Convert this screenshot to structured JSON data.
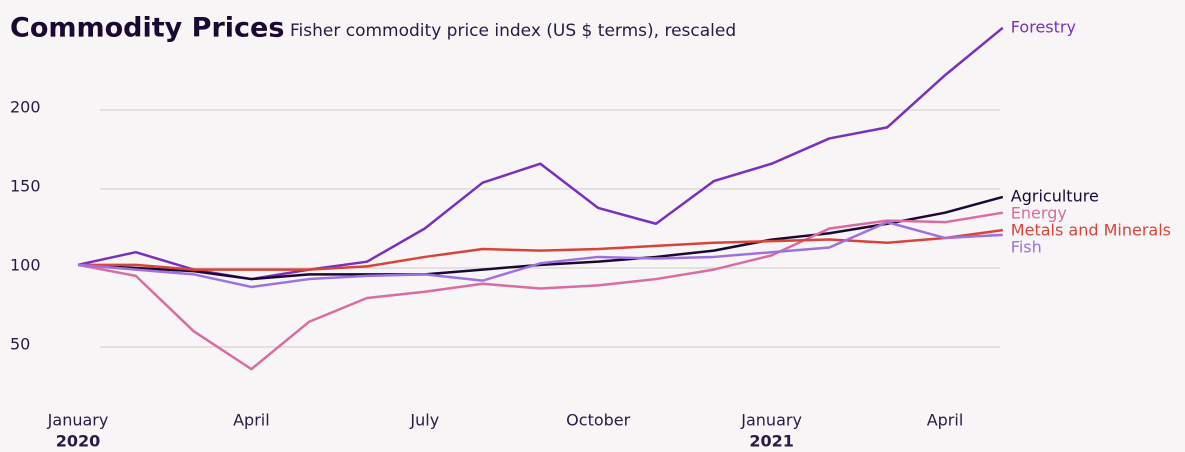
{
  "chart_data": {
    "type": "line",
    "title": "Commodity Prices",
    "subtitle": "Fisher commodity price index (US $ terms), rescaled",
    "categories": [
      "January",
      null,
      null,
      "April",
      null,
      null,
      "July",
      null,
      null,
      "October",
      null,
      null,
      "January",
      null,
      null,
      "April",
      null
    ],
    "years": [
      "2020",
      null,
      null,
      null,
      null,
      null,
      null,
      null,
      null,
      null,
      null,
      null,
      "2021",
      null,
      null,
      null,
      null
    ],
    "ylim": [
      30,
      260
    ],
    "yticks": [
      50,
      100,
      150,
      200
    ],
    "grid": true,
    "series": [
      {
        "name": "Forestry",
        "color": "#7b2fbf",
        "values": [
          102,
          110,
          99,
          93,
          99,
          104,
          125,
          154,
          166,
          138,
          128,
          155,
          166,
          182,
          189,
          222,
          252
        ]
      },
      {
        "name": "Agriculture",
        "color": "#1a0a33",
        "values": [
          102,
          100,
          98,
          93,
          96,
          96,
          96,
          99,
          102,
          104,
          107,
          111,
          118,
          122,
          128,
          135,
          145
        ]
      },
      {
        "name": "Energy",
        "color": "#d96ca0",
        "values": [
          102,
          95,
          60,
          36,
          66,
          81,
          85,
          90,
          87,
          89,
          93,
          99,
          108,
          125,
          130,
          129,
          135
        ]
      },
      {
        "name": "Metals and Minerals",
        "color": "#d9443a",
        "values": [
          102,
          102,
          99,
          99,
          99,
          101,
          107,
          112,
          111,
          112,
          114,
          116,
          117,
          118,
          116,
          119,
          124
        ]
      },
      {
        "name": "Fish",
        "color": "#a070e0",
        "values": [
          102,
          99,
          96,
          88,
          93,
          95,
          96,
          92,
          103,
          107,
          106,
          107,
          110,
          113,
          129,
          119,
          121
        ]
      }
    ]
  }
}
